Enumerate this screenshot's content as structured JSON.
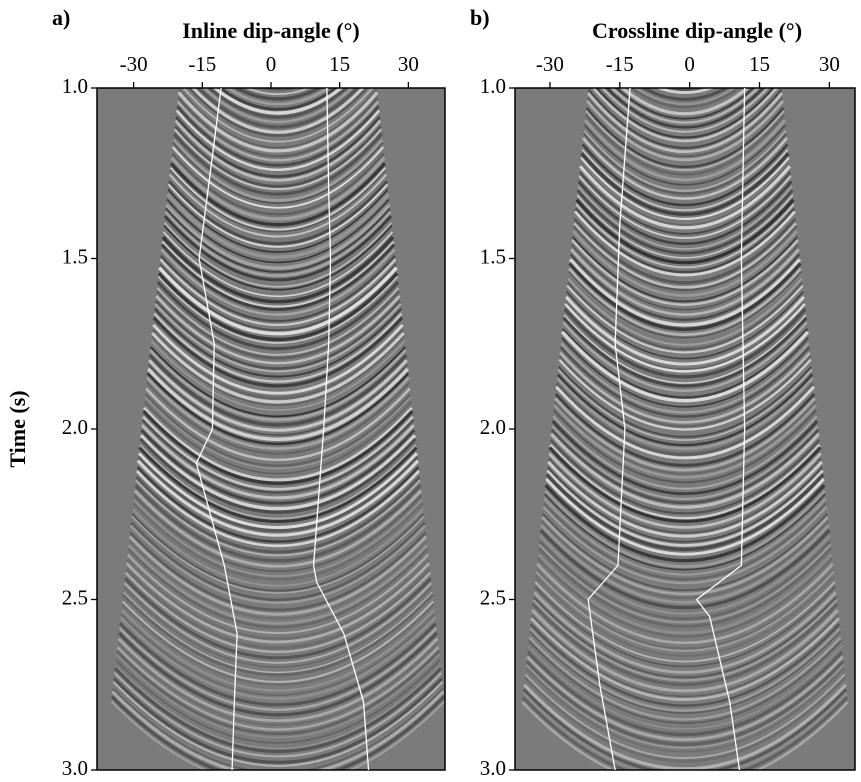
{
  "charts": [
    {
      "type": "line",
      "panel_label": "a)",
      "title": "Inline dip-angle (°)",
      "ylabel": "Time (s)",
      "xlim": [
        -38,
        38
      ],
      "xticks": [
        -30,
        -15,
        0,
        15,
        30
      ],
      "ylim": [
        1.0,
        3.0
      ],
      "yticks": [
        {
          "value": 1.0,
          "label": "1.0"
        },
        {
          "value": 1.5,
          "label": "1.5"
        },
        {
          "value": 2.0,
          "label": "2.0"
        },
        {
          "value": 2.5,
          "label": "2.5"
        },
        {
          "value": 3.0,
          "label": "3.0"
        }
      ],
      "series": [
        {
          "color": "#ffffff",
          "y": [
            1.0,
            1.2,
            1.5,
            1.75,
            2.0,
            2.1,
            2.4,
            2.6,
            2.8,
            3.0
          ],
          "x": [
            -10.9,
            -12.8,
            -15.7,
            -12.4,
            -12.8,
            -16.3,
            -10.2,
            -7.4,
            -8,
            -8.5
          ]
        },
        {
          "color": "#ffffff",
          "y": [
            1.0,
            1.3,
            1.5,
            1.75,
            2.0,
            2.4,
            2.45,
            2.6,
            2.8,
            3.0
          ],
          "x": [
            12.2,
            12.6,
            13,
            12.6,
            11.5,
            9.3,
            10,
            15.9,
            20.2,
            21.3
          ]
        }
      ]
    },
    {
      "type": "line",
      "panel_label": "b)",
      "title": "Crossline dip-angle (°)",
      "xlim": [
        -37.5,
        35.5
      ],
      "xticks": [
        -30,
        -15,
        0,
        15,
        30
      ],
      "ylim": [
        1.0,
        3.0
      ],
      "yticks": [
        {
          "value": 1.0,
          "label": "1.0"
        },
        {
          "value": 1.5,
          "label": "1.5"
        },
        {
          "value": 2.0,
          "label": "2.0"
        },
        {
          "value": 2.5,
          "label": "2.5"
        },
        {
          "value": 3.0,
          "label": "3.0"
        }
      ],
      "series": [
        {
          "color": "#ffffff",
          "y": [
            1.0,
            1.4,
            1.75,
            2.0,
            2.4,
            2.5,
            2.75,
            3.0
          ],
          "x": [
            -12.8,
            -15,
            -16,
            -13.9,
            -15.4,
            -21.8,
            -19.3,
            -16
          ]
        },
        {
          "color": "#ffffff",
          "y": [
            1.0,
            1.5,
            2.0,
            2.4,
            2.5,
            2.55,
            2.8,
            3.0
          ],
          "x": [
            11.8,
            11.1,
            11.8,
            11.1,
            1.5,
            4.3,
            8.6,
            10.7
          ]
        }
      ]
    }
  ]
}
